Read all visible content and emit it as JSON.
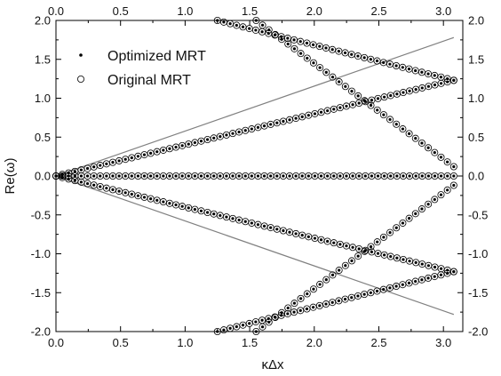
{
  "chart_data": {
    "type": "scatter",
    "xlabel": "κΔx",
    "ylabel": "Re(ω)",
    "xlim": [
      0.0,
      3.15
    ],
    "ylim": [
      -2.0,
      2.0
    ],
    "x_ticks": [
      "0.0",
      "0.5",
      "1.0",
      "1.5",
      "2.0",
      "2.5",
      "3.0"
    ],
    "y_ticks": [
      "-2.0",
      "-1.5",
      "-1.0",
      "-0.5",
      "0.0",
      "0.5",
      "1.0",
      "1.5",
      "2.0"
    ],
    "grid": false,
    "legend_placement": "top-left",
    "legend": [
      {
        "label": "Optimized MRT",
        "marker": "filled-dot"
      },
      {
        "label": "Original MRT",
        "marker": "open-circle"
      }
    ],
    "reference_lines": [
      {
        "x": [
          0.0,
          3.08
        ],
        "y": [
          0.0,
          1.78
        ],
        "color": "#808080"
      },
      {
        "x": [
          0.0,
          3.08
        ],
        "y": [
          0.0,
          -1.78
        ],
        "color": "#808080"
      }
    ],
    "branches": [
      {
        "x_start": 0.0,
        "x_end": 3.08,
        "y_start": 0.0,
        "y_end": 0.0,
        "spacing": 0.0491
      },
      {
        "x_start": 0.0,
        "x_end": 3.08,
        "y_start": 0.0,
        "y_end": 1.23,
        "spacing": 0.0491
      },
      {
        "x_start": 0.0,
        "x_end": 3.08,
        "y_start": 0.0,
        "y_end": -1.23,
        "spacing": 0.0491
      },
      {
        "x_start": 1.25,
        "x_end": 3.08,
        "y_start": 2.0,
        "y_end": 1.23,
        "spacing": 0.0491
      },
      {
        "x_start": 1.25,
        "x_end": 3.08,
        "y_start": -2.0,
        "y_end": -1.23,
        "spacing": 0.0491
      },
      {
        "x_start": 1.55,
        "x_end": 3.08,
        "y_start": -2.0,
        "y_end": -0.12,
        "spacing": 0.0491
      },
      {
        "x_start": 1.55,
        "x_end": 3.08,
        "y_start": 2.0,
        "y_end": 0.12,
        "spacing": 0.0491
      }
    ],
    "colors": {
      "marker": "#000000",
      "reference_line": "#808080",
      "axes": "#000000"
    }
  }
}
